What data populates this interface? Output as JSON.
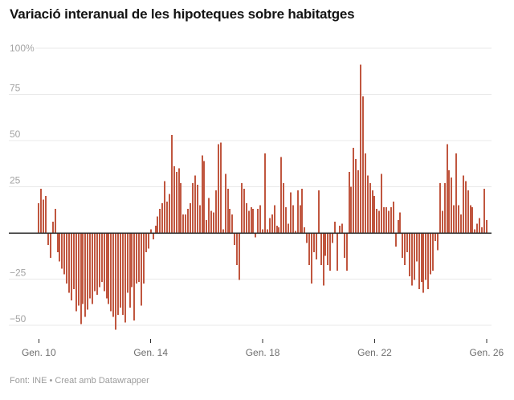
{
  "header": {
    "title": "Variació interanual de les hipoteques sobre habitatges"
  },
  "footer": {
    "text": "Font: INE • Creat amb Datawrapper"
  },
  "colors": {
    "bar": "#c0563f",
    "zero_line": "#2d2d2d",
    "grid_line": "#e9e9e9",
    "y_label": "#a3a3a3",
    "x_label": "#6e6e6e",
    "tick_mark": "#2f2f2f",
    "title": "#141414",
    "footer": "#9c9c9c"
  },
  "chart_data": {
    "type": "bar",
    "title": "Variació interanual de les hipoteques sobre habitatges",
    "unit": "%",
    "frequency": "monthly",
    "grid": true,
    "ylim": [
      -60,
      105
    ],
    "y_axis": {
      "ticks": [
        {
          "label": "100%",
          "value": 100
        },
        {
          "label": "75",
          "value": 75
        },
        {
          "label": "50",
          "value": 50
        },
        {
          "label": "25",
          "value": 25
        },
        {
          "label": "−25",
          "value": -25
        },
        {
          "label": "−50",
          "value": -50
        }
      ]
    },
    "x_axis": {
      "ticks": [
        {
          "label": "Gen. 10",
          "month_index": 0
        },
        {
          "label": "Gen. 14",
          "month_index": 48
        },
        {
          "label": "Gen. 18",
          "month_index": 96
        },
        {
          "label": "Gen. 22",
          "month_index": 144
        },
        {
          "label": "Gen. 26",
          "month_index": 192
        }
      ]
    },
    "values": [
      16,
      24,
      18,
      20,
      -6,
      -13,
      6,
      13,
      -10,
      -15,
      -19,
      -22,
      -27,
      -32,
      -36,
      -30,
      -42,
      -39,
      -49,
      -38,
      -45,
      -41,
      -35,
      -38,
      -31,
      -33,
      -29,
      -26,
      -31,
      -35,
      -38,
      -42,
      -45,
      -52,
      -44,
      -40,
      -44,
      -48,
      -32,
      -40,
      -29,
      -47,
      -27,
      -26,
      -39,
      -27,
      -10,
      -8,
      2,
      -3,
      4,
      9,
      13,
      16,
      28,
      17,
      21,
      53,
      36,
      33,
      35,
      27,
      10,
      10,
      13,
      16,
      27,
      31,
      26,
      15,
      42,
      39,
      7,
      19,
      12,
      11,
      23,
      48,
      49,
      2,
      32,
      24,
      13,
      10,
      -6,
      -17,
      -25,
      27,
      24,
      16,
      12,
      14,
      13,
      -2,
      13,
      15,
      2,
      43,
      2,
      8,
      10,
      15,
      4,
      3,
      41,
      27,
      14,
      5,
      22,
      15,
      1,
      23,
      15,
      24,
      3,
      -5,
      -17,
      -27,
      -10,
      -14,
      23,
      -17,
      -28,
      -12,
      -17,
      -20,
      -5,
      6,
      -20,
      4,
      5,
      -13,
      -20,
      33,
      25,
      46,
      40,
      34,
      91,
      74,
      43,
      31,
      27,
      23,
      20,
      13,
      12,
      32,
      14,
      14,
      12,
      14,
      17,
      -7,
      7,
      11,
      -13,
      -17,
      -10,
      -23,
      -28,
      -25,
      -15,
      -30,
      -26,
      -32,
      -25,
      -30,
      -22,
      -20,
      -4,
      -9,
      27,
      12,
      27,
      48,
      34,
      30,
      15,
      43,
      15,
      10,
      31,
      28,
      23,
      15,
      14,
      2,
      5,
      8,
      3,
      24,
      7
    ]
  }
}
